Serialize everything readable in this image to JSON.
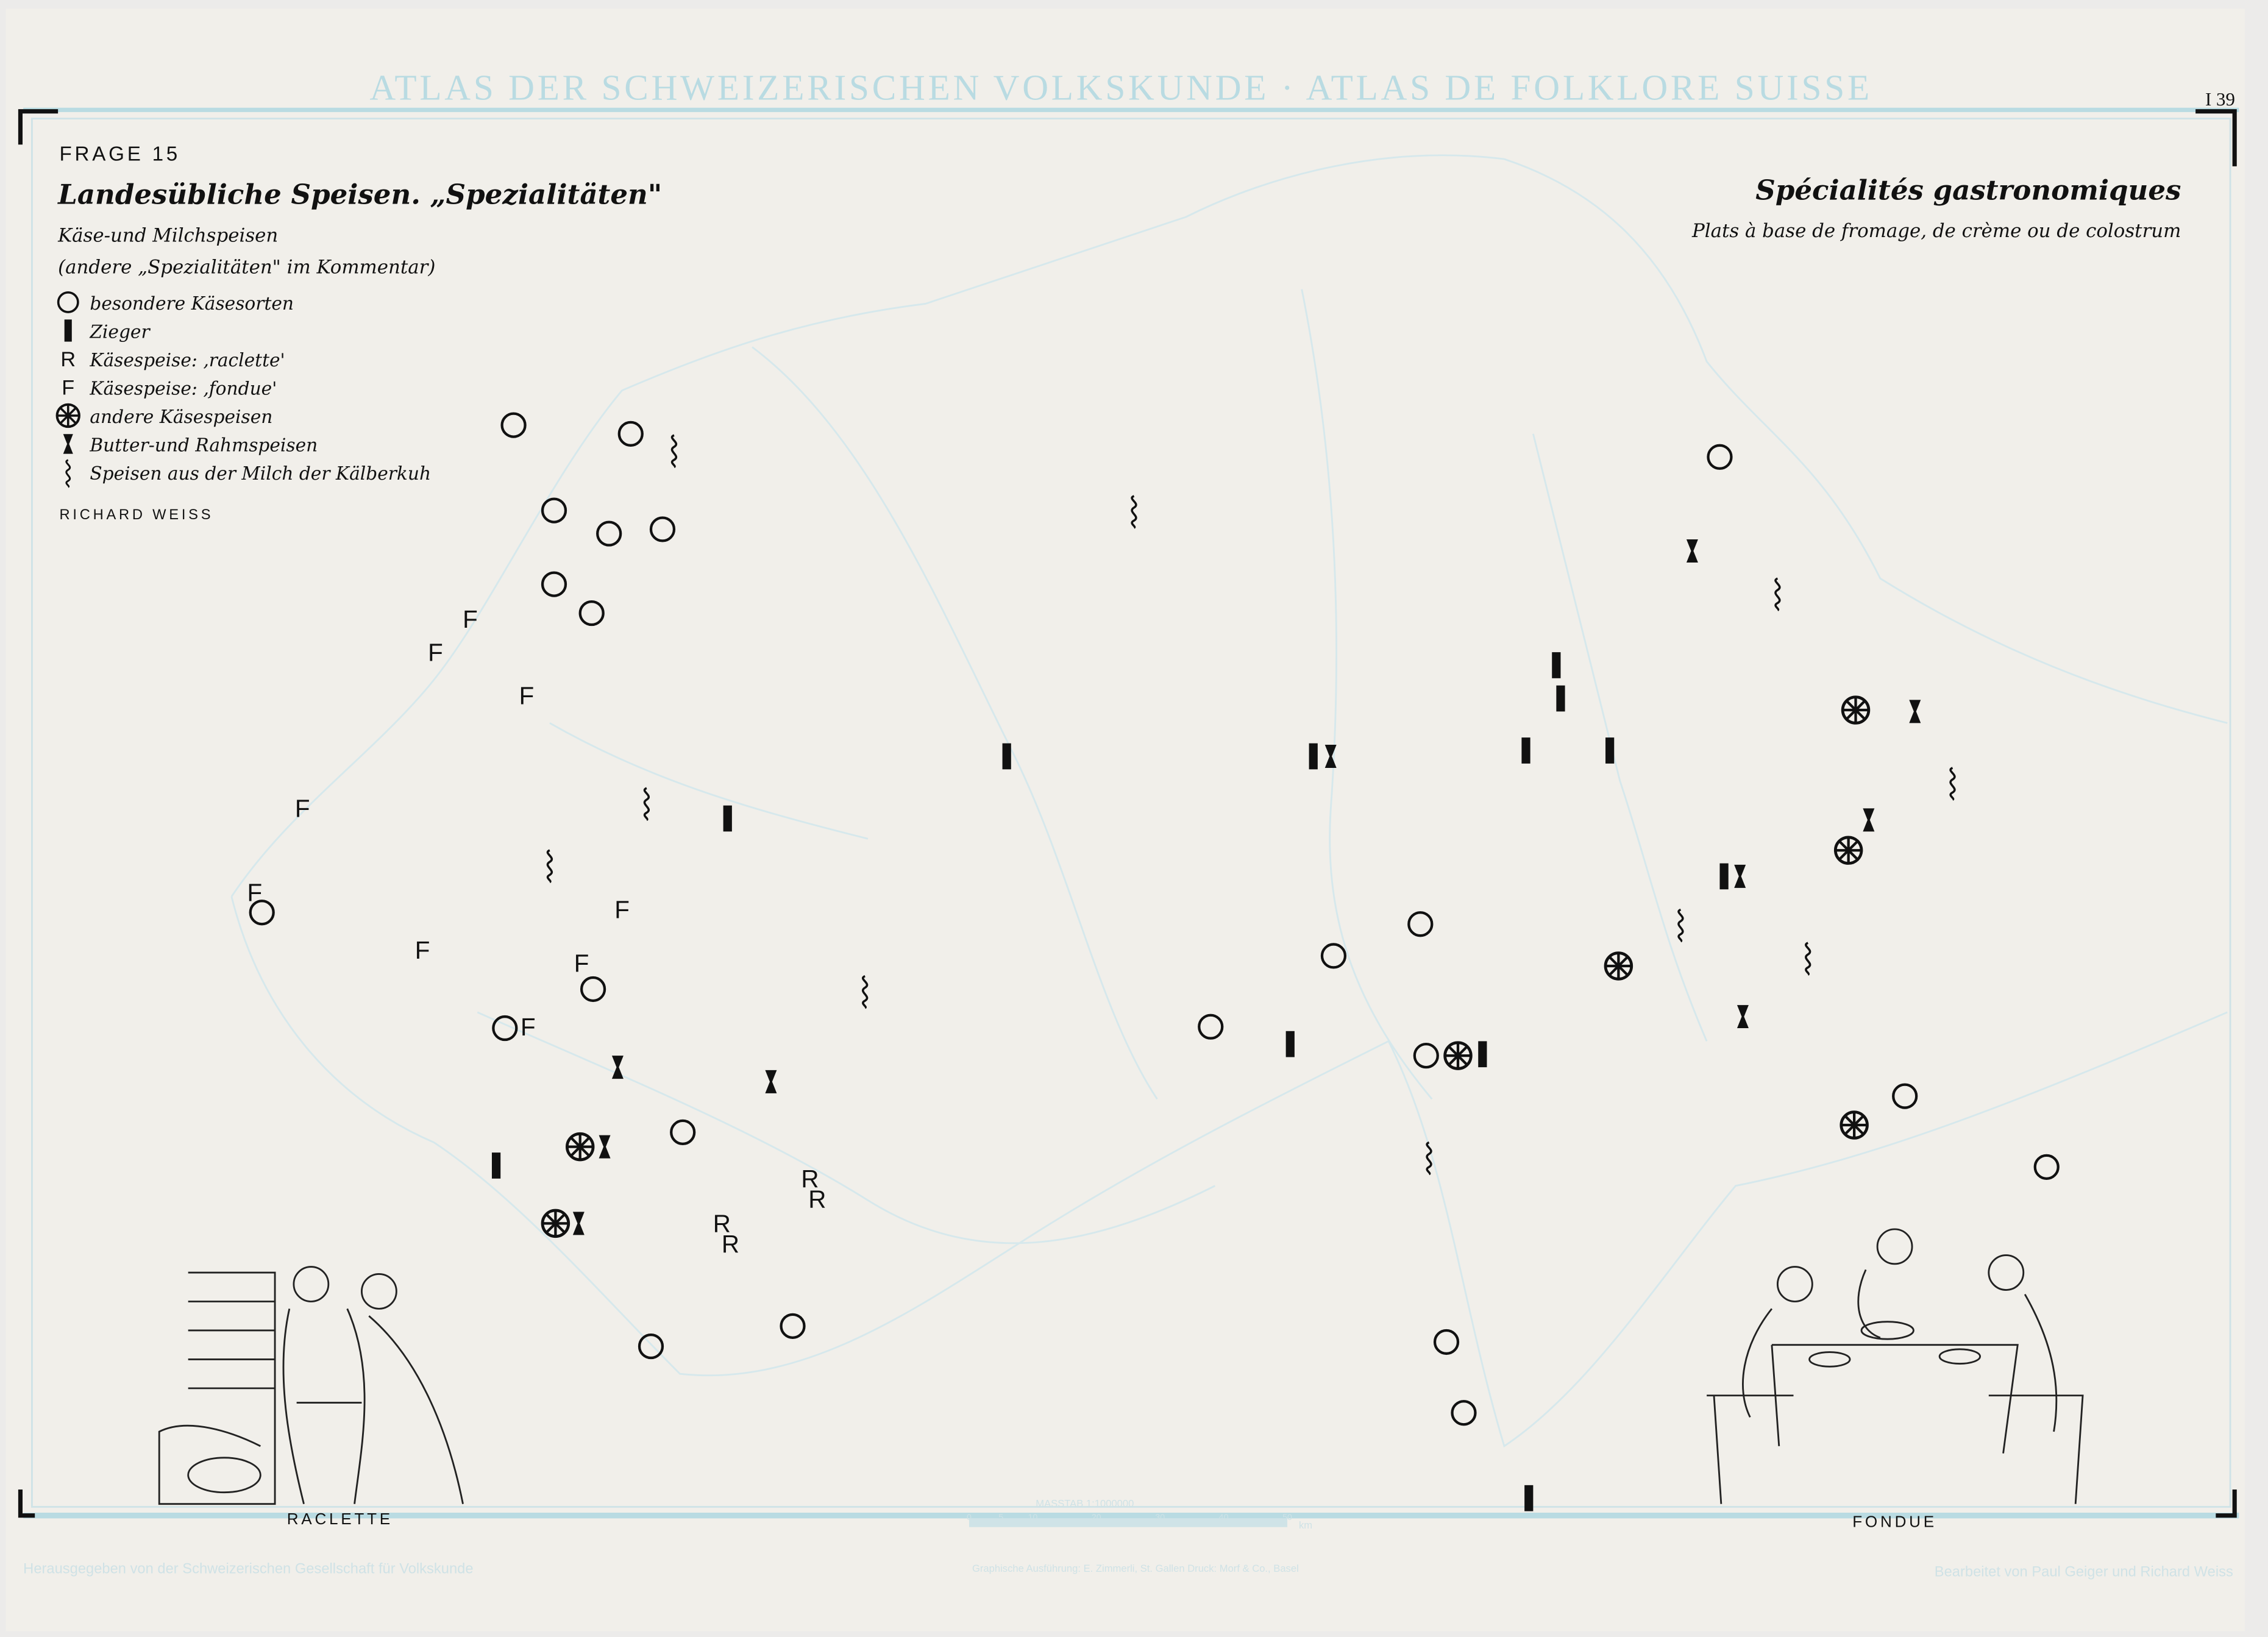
{
  "header": {
    "atlas_title": "ATLAS DER SCHWEIZERISCHEN VOLKSKUNDE · ATLAS DE FOLKLORE SUISSE",
    "sheet_number": "I 39"
  },
  "legend_de": {
    "question": "FRAGE 15",
    "title": "Landesübliche Speisen. „Spezialitäten\"",
    "subtitle": "Käse-und Milchspeisen",
    "note": "(andere „Spezialitäten\" im Kommentar)",
    "items": [
      {
        "symbol": "circle",
        "label": "besondere Käsesorten"
      },
      {
        "symbol": "bar",
        "label": "Zieger"
      },
      {
        "symbol": "R",
        "label": "Käsespeise: ‚raclette'"
      },
      {
        "symbol": "F",
        "label": "Käsespeise: ‚fondue'"
      },
      {
        "symbol": "wheel",
        "label": "andere Käsespeisen"
      },
      {
        "symbol": "hourglass",
        "label": "Butter-und Rahmspeisen"
      },
      {
        "symbol": "squiggle",
        "label": "Speisen aus der Milch der Kälberkuh"
      }
    ],
    "author": "RICHARD WEISS"
  },
  "legend_fr": {
    "title": "Spécialités gastronomiques",
    "subtitle": "Plats à base de fromage, de crème ou de colostrum"
  },
  "illustrations": {
    "left_caption": "RACLETTE",
    "right_caption": "FONDUE"
  },
  "scale": {
    "label": "MASSTAB 1:1000000",
    "ticks": [
      "0",
      "5",
      "10",
      "20",
      "30",
      "40",
      "50"
    ],
    "unit": "km"
  },
  "footer": {
    "left": "Herausgegeben von der Schweizerischen Gesellschaft für Volkskunde",
    "center": "Graphische Ausführung: E. Zimmerli, St. Gallen   Druck: Morf & Co., Basel",
    "right": "Bearbeitet von Paul Geiger und Richard Weiss"
  },
  "colors": {
    "paper": "#f1efea",
    "frame_blue": "#b9dbe2",
    "ink": "#111111",
    "base_map": "#d6e8ec"
  }
}
